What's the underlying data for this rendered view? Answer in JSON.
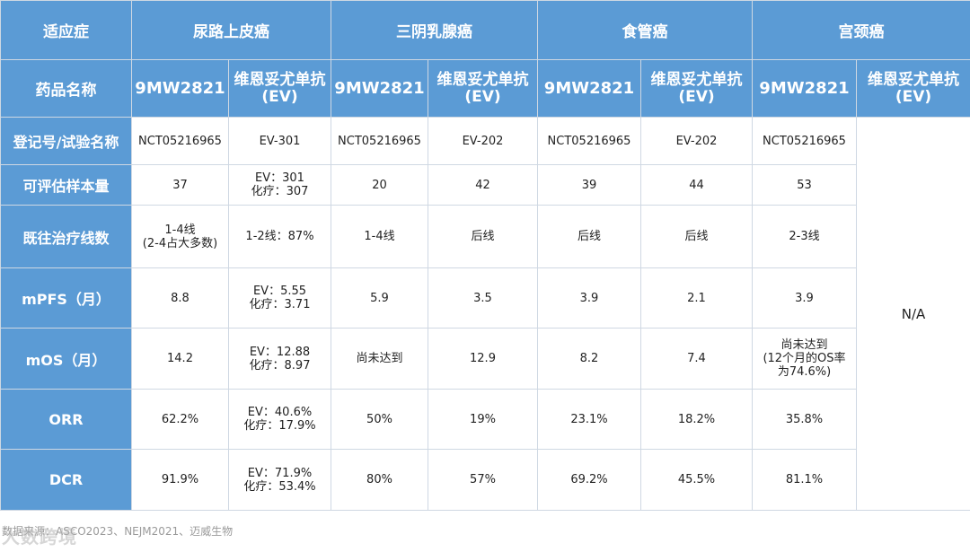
{
  "table": {
    "indication_label": "适应症",
    "drug_label": "药品名称",
    "indications": [
      "尿路上皮癌",
      "三阴乳腺癌",
      "食管癌",
      "宫颈癌"
    ],
    "drugs": [
      "9MW2821",
      "维恩妥尤单抗\n(EV)",
      "9MW2821",
      "维恩妥尤单抗\n(EV)",
      "9MW2821",
      "维恩妥尤单抗\n(EV)",
      "9MW2821",
      "维恩妥尤单抗\n(EV)"
    ],
    "na_text": "N/A",
    "rows": [
      {
        "label": "登记号/试验名称",
        "cells": [
          "NCT05216965",
          "EV-301",
          "NCT05216965",
          "EV-202",
          "NCT05216965",
          "EV-202",
          "NCT05216965"
        ]
      },
      {
        "label": "可评估样本量",
        "cells": [
          "37",
          "EV：301\n化疗：307",
          "20",
          "42",
          "39",
          "44",
          "53"
        ]
      },
      {
        "label": "既往治疗线数",
        "cells": [
          "1-4线\n(2-4占大多数)",
          "1-2线：87%",
          "1-4线",
          "后线",
          "后线",
          "后线",
          "2-3线"
        ]
      },
      {
        "label": "mPFS（月）",
        "cells": [
          "8.8",
          "EV：5.55\n化疗：3.71",
          "5.9",
          "3.5",
          "3.9",
          "2.1",
          "3.9"
        ]
      },
      {
        "label": "mOS（月）",
        "cells": [
          "14.2",
          "EV：12.88\n化疗：8.97",
          "尚未达到",
          "12.9",
          "8.2",
          "7.4",
          "尚未达到\n(12个月的OS率\n为74.6%)"
        ]
      },
      {
        "label": "ORR",
        "cells": [
          "62.2%",
          "EV：40.6%\n化疗：17.9%",
          "50%",
          "19%",
          "23.1%",
          "18.2%",
          "35.8%"
        ]
      },
      {
        "label": "DCR",
        "cells": [
          "91.9%",
          "EV：71.9%\n化疗：53.4%",
          "80%",
          "57%",
          "69.2%",
          "45.5%",
          "81.1%"
        ]
      }
    ]
  },
  "footer": {
    "source": "数据来源：ASCO2023、NEJM2021、迈威生物",
    "watermark": "大数跨境"
  }
}
